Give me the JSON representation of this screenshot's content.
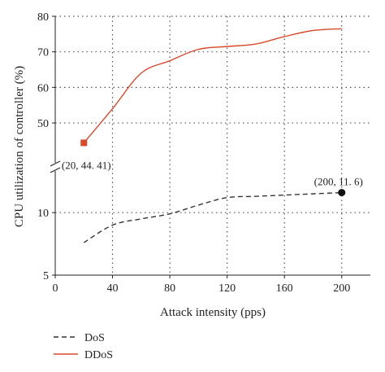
{
  "chart_data": {
    "type": "line",
    "xlabel": "Attack intensity (pps)",
    "ylabel": "CPU utilization of controller (%)",
    "xlim": [
      0,
      220
    ],
    "x_ticks": [
      0,
      40,
      80,
      120,
      160,
      200
    ],
    "y_scale": "broken",
    "y_lower_range": [
      5,
      13.2
    ],
    "y_upper_range": [
      42,
      80
    ],
    "y_ticks": [
      5,
      10,
      50,
      60,
      70,
      80
    ],
    "grid": true,
    "legend_position": "bottom-left",
    "series": [
      {
        "name": "DoS",
        "style": "dashed",
        "color": "#333333",
        "x": [
          20,
          40,
          60,
          80,
          100,
          120,
          140,
          160,
          180,
          200
        ],
        "y": [
          7.6,
          9.0,
          9.5,
          9.9,
          10.6,
          11.2,
          11.3,
          11.4,
          11.5,
          11.6
        ]
      },
      {
        "name": "DDoS",
        "style": "solid",
        "color": "#d9482b",
        "x": [
          20,
          40,
          60,
          80,
          100,
          120,
          140,
          160,
          180,
          200
        ],
        "y": [
          44.41,
          54,
          64,
          67.5,
          70.7,
          71.5,
          72.2,
          74.3,
          76,
          76.5
        ]
      }
    ],
    "annotations": [
      {
        "label": "(20, 44. 41)",
        "x": 20,
        "y": 44.41,
        "series": "DDoS",
        "marker": "square"
      },
      {
        "label": "(200, 11. 6)",
        "x": 200,
        "y": 11.6,
        "series": "DoS",
        "marker": "circle"
      }
    ]
  }
}
